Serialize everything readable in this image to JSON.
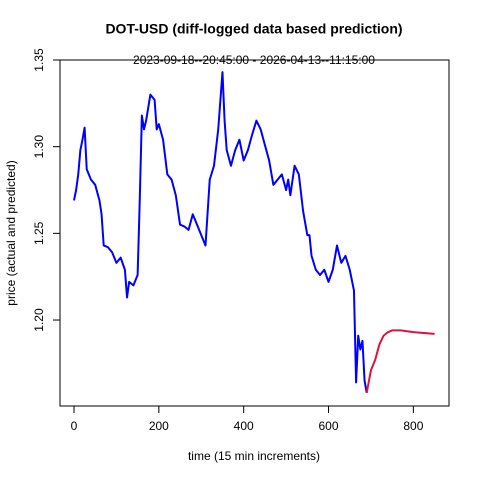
{
  "chart_data": {
    "type": "line",
    "title": "DOT-USD (diff-logged data based prediction)",
    "subtitle": "2023-09-18--20:45:00  -  2026-04-13--11:15:00",
    "x_label": "time (15 min increments)",
    "y_label": "price (actual and predicted)",
    "xlim": [
      -33,
      884
    ],
    "ylim": [
      1.1504,
      1.35
    ],
    "xticks": [
      0,
      200,
      400,
      600,
      800
    ],
    "yticks": [
      {
        "value": 1.2,
        "label": "1.20"
      },
      {
        "value": 1.25,
        "label": "1.25"
      },
      {
        "value": 1.3,
        "label": "1.30"
      },
      {
        "value": 1.35,
        "label": "1.35"
      }
    ],
    "series": [
      {
        "color": "#0000ff",
        "x": [
          0,
          5,
          10,
          15,
          20,
          25,
          30,
          40,
          50,
          60,
          65,
          70,
          80,
          90,
          100,
          110,
          120,
          125,
          130,
          140,
          150,
          155,
          160,
          165,
          170,
          180,
          190,
          195,
          200,
          210,
          220,
          230,
          240,
          250,
          260,
          270,
          280,
          290,
          300,
          310,
          320,
          330,
          340,
          350,
          355,
          360,
          370,
          380,
          390,
          400,
          410,
          420,
          430,
          440,
          450,
          460,
          470,
          480,
          490,
          500,
          505,
          510,
          520,
          530,
          540,
          550,
          555,
          560,
          570,
          580,
          590,
          600,
          610,
          620,
          630,
          640,
          650,
          660,
          665,
          670,
          675,
          680,
          685,
          690
        ],
        "values": [
          1.269,
          1.275,
          1.284,
          1.298,
          1.304,
          1.311,
          1.287,
          1.281,
          1.278,
          1.269,
          1.261,
          1.243,
          1.242,
          1.239,
          1.233,
          1.236,
          1.229,
          1.213,
          1.222,
          1.22,
          1.226,
          1.269,
          1.318,
          1.31,
          1.315,
          1.33,
          1.327,
          1.31,
          1.313,
          1.304,
          1.284,
          1.281,
          1.272,
          1.255,
          1.254,
          1.252,
          1.261,
          1.255,
          1.249,
          1.243,
          1.281,
          1.289,
          1.31,
          1.343,
          1.315,
          1.298,
          1.289,
          1.298,
          1.304,
          1.292,
          1.298,
          1.307,
          1.315,
          1.31,
          1.301,
          1.292,
          1.278,
          1.281,
          1.284,
          1.275,
          1.281,
          1.272,
          1.289,
          1.284,
          1.263,
          1.249,
          1.249,
          1.237,
          1.229,
          1.226,
          1.229,
          1.222,
          1.229,
          1.243,
          1.233,
          1.237,
          1.229,
          1.217,
          1.164,
          1.191,
          1.183,
          1.188,
          1.165,
          1.158
        ]
      },
      {
        "color": "#dc143c",
        "x": [
          690,
          700,
          710,
          720,
          730,
          740,
          750,
          770,
          800,
          850
        ],
        "values": [
          1.158,
          1.171,
          1.177,
          1.186,
          1.191,
          1.193,
          1.194,
          1.194,
          1.193,
          1.192
        ]
      }
    ]
  }
}
